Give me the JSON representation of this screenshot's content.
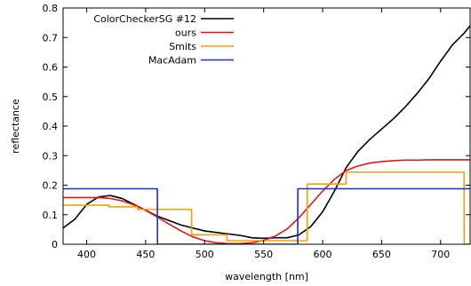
{
  "chart_data": {
    "type": "line",
    "title": "",
    "xlabel": "wavelength [nm]",
    "ylabel": "reflectance",
    "xlim": [
      380,
      725
    ],
    "ylim": [
      0,
      0.8
    ],
    "xticks": [
      400,
      450,
      500,
      550,
      600,
      650,
      700
    ],
    "yticks": [
      0,
      0.1,
      0.2,
      0.3,
      0.4,
      0.5,
      0.6,
      0.7,
      0.8
    ],
    "xtick_labels": [
      "400",
      "450",
      "500",
      "550",
      "600",
      "650",
      "700"
    ],
    "ytick_labels": [
      "0",
      "0.1",
      "0.2",
      "0.3",
      "0.4",
      "0.5",
      "0.6",
      "0.7",
      "0.8"
    ],
    "grid": false,
    "legend_position": "top-left",
    "series": [
      {
        "name": "ColorCheckerSG #12",
        "color": "#000000",
        "x": [
          380,
          390,
          400,
          410,
          420,
          430,
          440,
          450,
          460,
          470,
          480,
          490,
          500,
          510,
          520,
          530,
          540,
          550,
          560,
          570,
          580,
          590,
          600,
          610,
          620,
          630,
          640,
          650,
          660,
          670,
          680,
          690,
          700,
          710,
          720,
          725
        ],
        "y": [
          0.055,
          0.085,
          0.135,
          0.16,
          0.165,
          0.155,
          0.135,
          0.115,
          0.095,
          0.08,
          0.065,
          0.055,
          0.045,
          0.04,
          0.035,
          0.03,
          0.022,
          0.02,
          0.022,
          0.022,
          0.032,
          0.06,
          0.11,
          0.18,
          0.26,
          0.315,
          0.355,
          0.39,
          0.425,
          0.465,
          0.51,
          0.56,
          0.62,
          0.675,
          0.715,
          0.74
        ]
      },
      {
        "name": "ours",
        "color": "#ee1111",
        "x": [
          380,
          390,
          400,
          410,
          420,
          430,
          440,
          450,
          460,
          470,
          480,
          490,
          500,
          510,
          520,
          530,
          540,
          550,
          560,
          570,
          580,
          590,
          600,
          610,
          620,
          630,
          640,
          650,
          660,
          670,
          680,
          690,
          700,
          710,
          720,
          725
        ],
        "y": [
          0.158,
          0.158,
          0.158,
          0.158,
          0.155,
          0.147,
          0.133,
          0.115,
          0.092,
          0.068,
          0.045,
          0.025,
          0.012,
          0.005,
          0.002,
          0.002,
          0.005,
          0.013,
          0.028,
          0.052,
          0.09,
          0.135,
          0.18,
          0.22,
          0.25,
          0.265,
          0.275,
          0.28,
          0.283,
          0.285,
          0.285,
          0.286,
          0.286,
          0.286,
          0.286,
          0.286
        ]
      },
      {
        "name": "Smits",
        "color": "#f5a000",
        "x": [
          380,
          399.9,
          400,
          418.9,
          419,
          442.9,
          443,
          488.9,
          489,
          518.9,
          519,
          586.9,
          587,
          619.9,
          620,
          719.9,
          720,
          725
        ],
        "y": [
          0.132,
          0.132,
          0.132,
          0.132,
          0.127,
          0.127,
          0.118,
          0.118,
          0.032,
          0.032,
          0.012,
          0.012,
          0.204,
          0.204,
          0.244,
          0.244,
          0,
          0
        ]
      },
      {
        "name": "MacAdam",
        "color": "#1a2ed6",
        "x": [
          380,
          459.9,
          460,
          578.9,
          579,
          725
        ],
        "y": [
          0.188,
          0.188,
          0,
          0,
          0.188,
          0.188
        ]
      }
    ]
  }
}
